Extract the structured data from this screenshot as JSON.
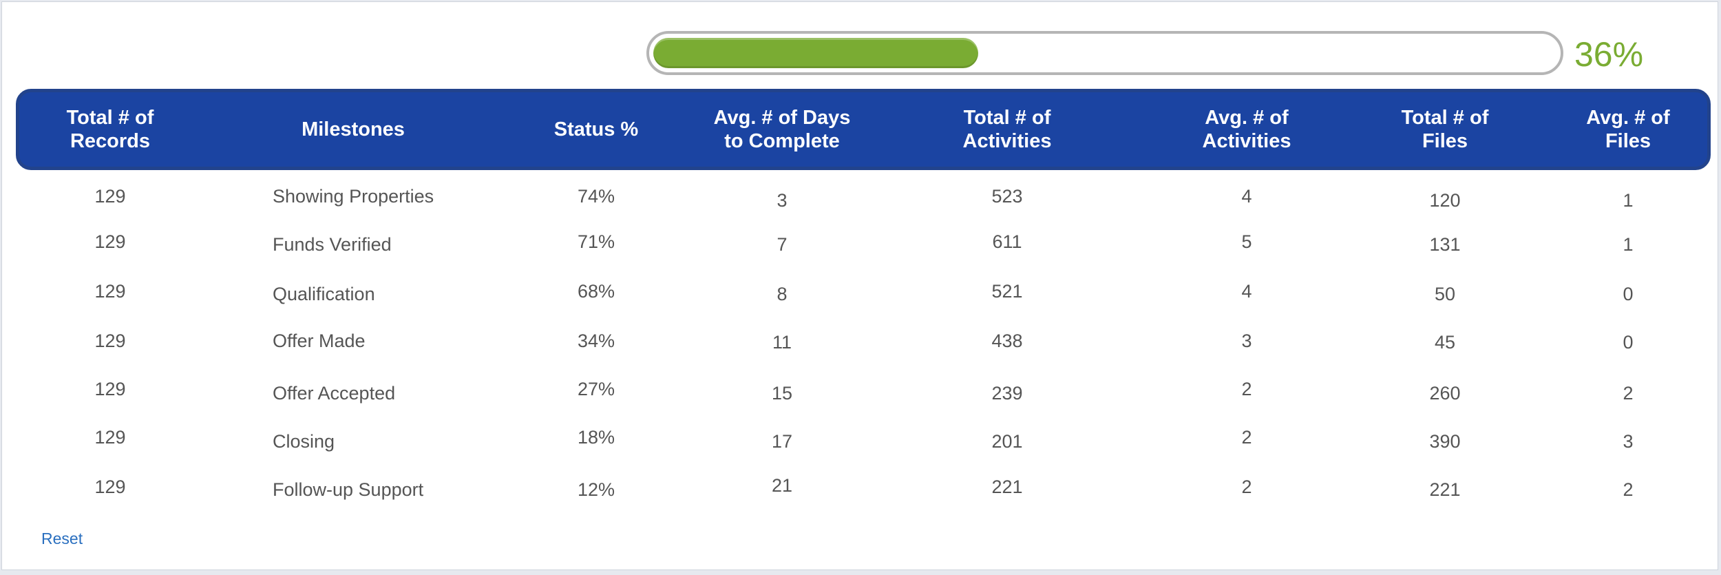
{
  "progress": {
    "value_percent": 36,
    "label": "36%",
    "fill_color": "#7aac33"
  },
  "table": {
    "header_color": "#1b44a2",
    "columns": [
      "Total # of\nRecords",
      "Milestones",
      "Status %",
      "Avg. # of Days\nto Complete",
      "Total # of\nActivities",
      "Avg. # of\nActivities",
      "Total # of\nFiles",
      "Avg. # of\nFiles"
    ],
    "rows": [
      [
        "129",
        "Showing Properties",
        "74%",
        "3",
        "523",
        "4",
        "120",
        "1"
      ],
      [
        "129",
        "Funds Verified",
        "71%",
        "7",
        "611",
        "5",
        "131",
        "1"
      ],
      [
        "129",
        "Qualification",
        "68%",
        "8",
        "521",
        "4",
        "50",
        "0"
      ],
      [
        "129",
        "Offer Made",
        "34%",
        "11",
        "438",
        "3",
        "45",
        "0"
      ],
      [
        "129",
        "Offer Accepted",
        "27%",
        "15",
        "239",
        "2",
        "260",
        "2"
      ],
      [
        "129",
        "Closing",
        "18%",
        "17",
        "201",
        "2",
        "390",
        "3"
      ],
      [
        "129",
        "Follow-up Support",
        "12%",
        "21",
        "221",
        "2",
        "221",
        "2"
      ]
    ]
  },
  "reset_label": "Reset"
}
